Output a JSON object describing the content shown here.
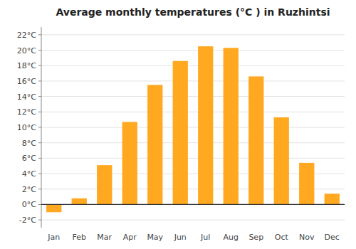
{
  "chart_data": {
    "type": "bar",
    "title": "Average monthly temperatures (°C ) in Ruzhintsi",
    "categories": [
      "Jan",
      "Feb",
      "Mar",
      "Apr",
      "May",
      "Jun",
      "Jul",
      "Aug",
      "Sep",
      "Oct",
      "Nov",
      "Dec"
    ],
    "values": [
      -1.0,
      0.8,
      5.1,
      10.7,
      15.5,
      18.6,
      20.5,
      20.3,
      16.6,
      11.3,
      5.4,
      1.4
    ],
    "color": "#FFA820",
    "ylim": [
      -3,
      23
    ],
    "yticks": [
      {
        "value": -2,
        "label": "-2°C"
      },
      {
        "value": 0,
        "label": "0°C"
      },
      {
        "value": 2,
        "label": "2°C"
      },
      {
        "value": 4,
        "label": "4°C"
      },
      {
        "value": 6,
        "label": "6°C"
      },
      {
        "value": 8,
        "label": "8°C"
      },
      {
        "value": 10,
        "label": "10°C"
      },
      {
        "value": 12,
        "label": "12°C"
      },
      {
        "value": 14,
        "label": "14°C"
      },
      {
        "value": 16,
        "label": "16°C"
      },
      {
        "value": 18,
        "label": "18°C"
      },
      {
        "value": 20,
        "label": "20°C"
      },
      {
        "value": 22,
        "label": "22°C"
      }
    ],
    "grid": true
  }
}
